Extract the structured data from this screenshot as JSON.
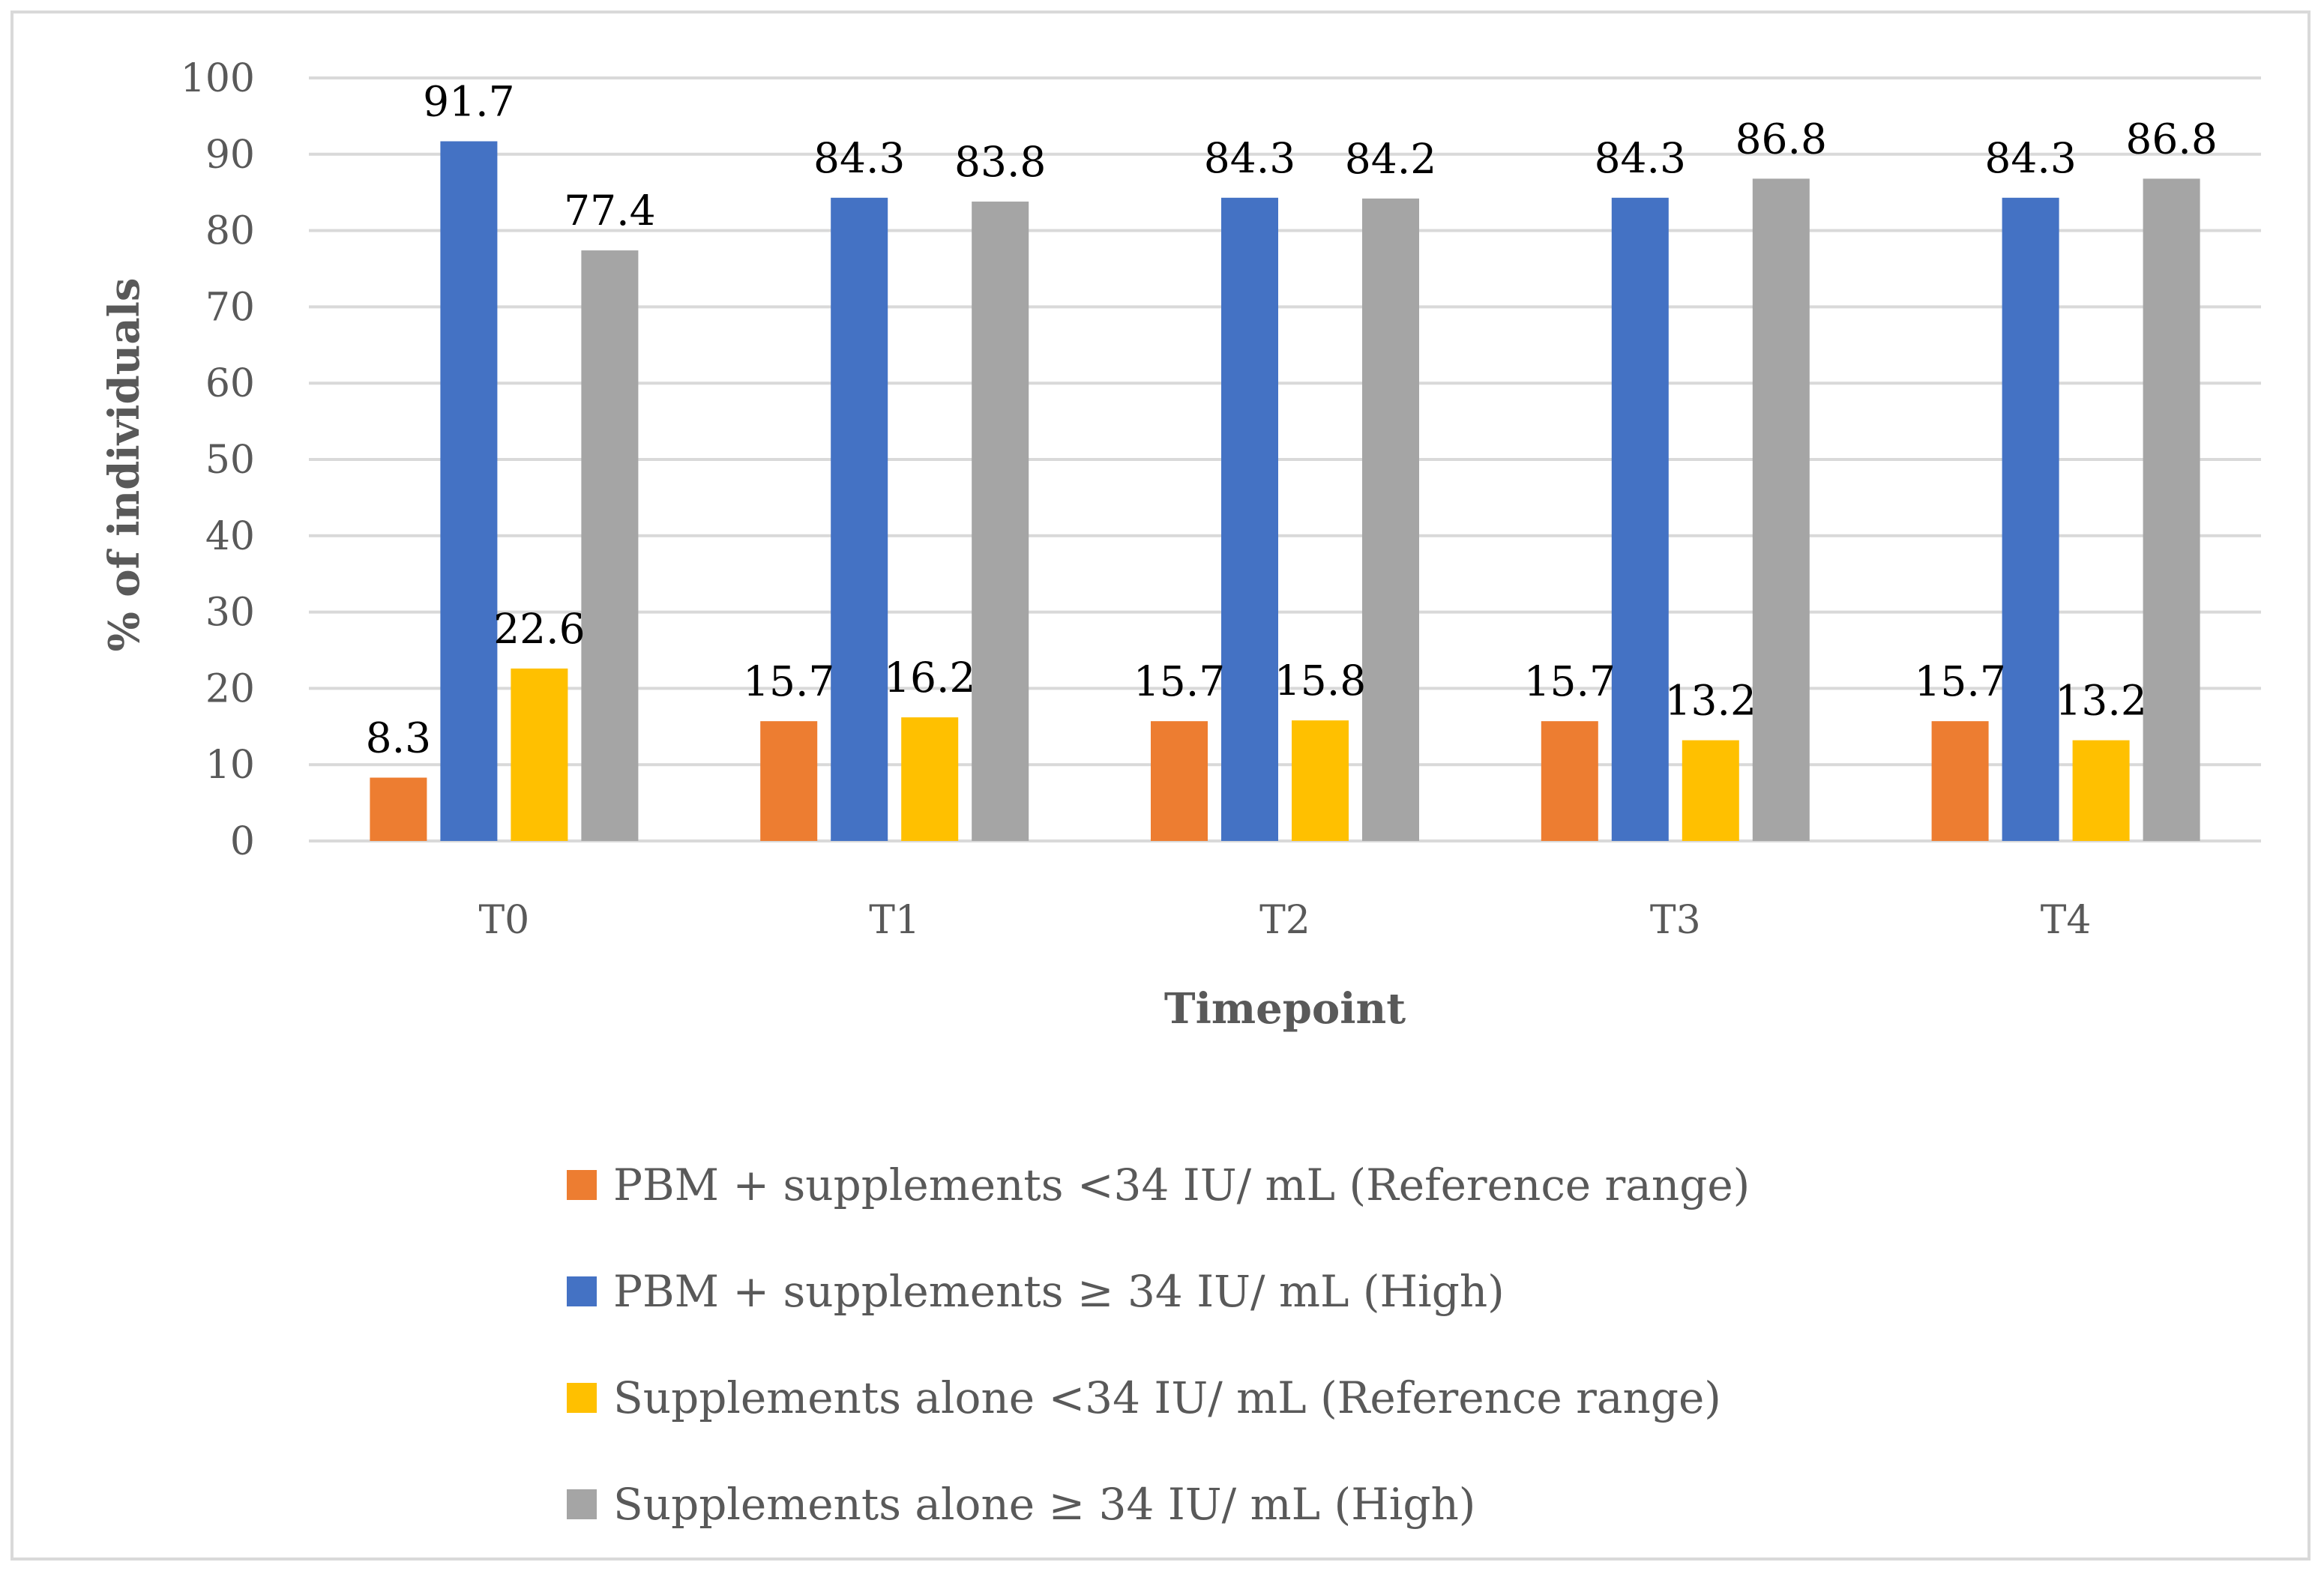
{
  "chart_data": {
    "type": "bar",
    "title": "",
    "xlabel": "Timepoint",
    "ylabel": "% of individuals",
    "ylim": [
      0,
      100
    ],
    "yticks": [
      0,
      10,
      20,
      30,
      40,
      50,
      60,
      70,
      80,
      90,
      100
    ],
    "grid": true,
    "legend_position": "bottom",
    "categories": [
      "T0",
      "T1",
      "T2",
      "T3",
      "T4"
    ],
    "series": [
      {
        "name": "PBM + supplements <34 IU/ mL (Reference range)",
        "color": "#ED7D31",
        "values": [
          8.3,
          15.7,
          15.7,
          15.7,
          15.7
        ]
      },
      {
        "name": "PBM + supplements ≥ 34 IU/ mL (High)",
        "color": "#4472C4",
        "values": [
          91.7,
          84.3,
          84.3,
          84.3,
          84.3
        ]
      },
      {
        "name": "Supplements alone <34 IU/ mL (Reference range)",
        "color": "#FFC000",
        "values": [
          22.6,
          16.2,
          15.8,
          13.2,
          13.2
        ]
      },
      {
        "name": "Supplements alone ≥ 34 IU/ mL (High)",
        "color": "#A5A5A5",
        "values": [
          77.4,
          83.8,
          84.2,
          86.8,
          86.8
        ]
      }
    ]
  }
}
